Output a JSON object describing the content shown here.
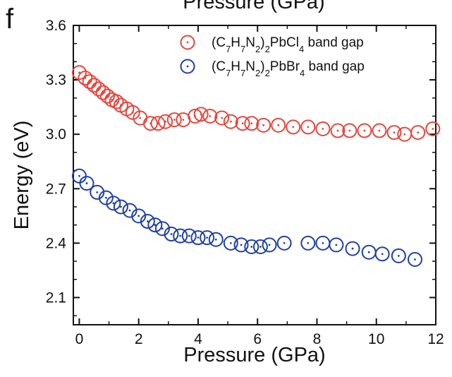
{
  "panel_label": "f",
  "top_clipped_title": "Pressure (GPa)",
  "chart_data": {
    "type": "scatter",
    "xlabel": "Pressure (GPa)",
    "ylabel": "Energy (eV)",
    "xlim": [
      -0.2,
      12
    ],
    "ylim": [
      1.95,
      3.6
    ],
    "xticks": [
      0,
      2,
      4,
      6,
      8,
      10,
      12
    ],
    "xtick_labels": [
      "0",
      "2",
      "4",
      "6",
      "8",
      "10",
      "12"
    ],
    "yticks": [
      2.1,
      2.4,
      2.7,
      3.0,
      3.3,
      3.6
    ],
    "ytick_labels": [
      "2.1",
      "2.4",
      "2.7",
      "3.0",
      "3.3",
      "3.6"
    ],
    "grid": false,
    "legend_position": "top-right",
    "series": [
      {
        "name": "(C7H7N2)2PbCl4 band gap",
        "legend_parts": [
          {
            "t": "(C",
            "sub": false
          },
          {
            "t": "7",
            "sub": true
          },
          {
            "t": "H",
            "sub": false
          },
          {
            "t": "7",
            "sub": true
          },
          {
            "t": "N",
            "sub": false
          },
          {
            "t": "2",
            "sub": true
          },
          {
            "t": ")",
            "sub": false
          },
          {
            "t": "2",
            "sub": true
          },
          {
            "t": "PbCl",
            "sub": false
          },
          {
            "t": "4",
            "sub": true
          },
          {
            "t": " band gap",
            "sub": false
          }
        ],
        "color": "#e8453c",
        "x": [
          0.0,
          0.2,
          0.35,
          0.5,
          0.65,
          0.8,
          0.95,
          1.1,
          1.25,
          1.4,
          1.6,
          1.8,
          2.05,
          2.4,
          2.65,
          2.9,
          3.2,
          3.5,
          3.9,
          4.1,
          4.4,
          4.8,
          5.1,
          5.5,
          5.8,
          6.2,
          6.7,
          7.2,
          7.7,
          8.2,
          8.7,
          9.1,
          9.6,
          10.1,
          10.6,
          10.95,
          11.4,
          11.9
        ],
        "y": [
          3.34,
          3.31,
          3.29,
          3.27,
          3.25,
          3.23,
          3.21,
          3.19,
          3.18,
          3.16,
          3.14,
          3.12,
          3.09,
          3.06,
          3.06,
          3.07,
          3.08,
          3.08,
          3.1,
          3.11,
          3.1,
          3.09,
          3.07,
          3.06,
          3.06,
          3.05,
          3.05,
          3.04,
          3.04,
          3.03,
          3.02,
          3.02,
          3.02,
          3.02,
          3.01,
          3.0,
          3.01,
          3.03
        ]
      },
      {
        "name": "(C7H7N2)2PbBr4 band gap",
        "legend_parts": [
          {
            "t": "(C",
            "sub": false
          },
          {
            "t": "7",
            "sub": true
          },
          {
            "t": "H",
            "sub": false
          },
          {
            "t": "7",
            "sub": true
          },
          {
            "t": "N",
            "sub": false
          },
          {
            "t": "2",
            "sub": true
          },
          {
            "t": ")",
            "sub": false
          },
          {
            "t": "2",
            "sub": true
          },
          {
            "t": "PbBr",
            "sub": false
          },
          {
            "t": "4",
            "sub": true
          },
          {
            "t": " band gap",
            "sub": false
          }
        ],
        "color": "#1f3fa6",
        "x": [
          0.0,
          0.25,
          0.6,
          0.9,
          1.15,
          1.4,
          1.7,
          2.0,
          2.3,
          2.55,
          2.8,
          3.1,
          3.4,
          3.7,
          4.0,
          4.3,
          4.6,
          5.1,
          5.45,
          5.8,
          6.1,
          6.4,
          6.9,
          7.7,
          8.2,
          8.65,
          9.2,
          9.75,
          10.2,
          10.75,
          11.3
        ],
        "y": [
          2.77,
          2.73,
          2.68,
          2.65,
          2.62,
          2.6,
          2.58,
          2.55,
          2.52,
          2.5,
          2.48,
          2.45,
          2.44,
          2.44,
          2.43,
          2.43,
          2.42,
          2.4,
          2.39,
          2.38,
          2.38,
          2.39,
          2.4,
          2.4,
          2.4,
          2.39,
          2.37,
          2.35,
          2.34,
          2.33,
          2.31
        ]
      }
    ]
  }
}
